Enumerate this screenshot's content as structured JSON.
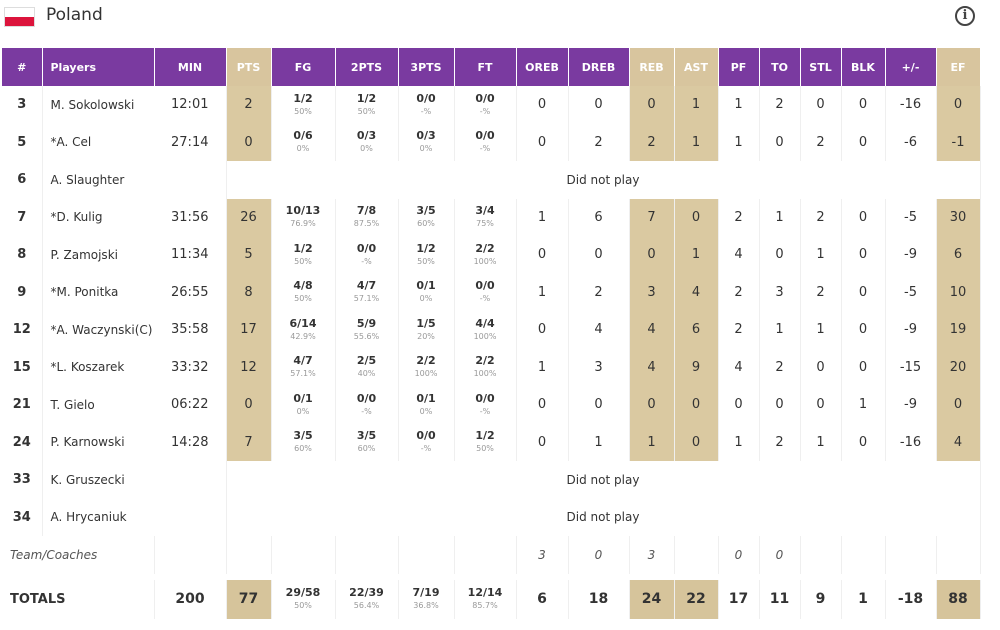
{
  "team": {
    "name": "Poland"
  },
  "columns": [
    "#",
    "Players",
    "MIN",
    "PTS",
    "FG",
    "2PTS",
    "3PTS",
    "FT",
    "OREB",
    "DREB",
    "REB",
    "AST",
    "PF",
    "TO",
    "STL",
    "BLK",
    "+/-",
    "EF"
  ],
  "players": [
    {
      "no": "3",
      "name": "M. Sokolowski",
      "min": "12:01",
      "pts": "2",
      "fg": [
        "1/2",
        "50%"
      ],
      "p2": [
        "1/2",
        "50%"
      ],
      "p3": [
        "0/0",
        "-%"
      ],
      "ft": [
        "0/0",
        "-%"
      ],
      "oreb": "0",
      "dreb": "0",
      "reb": "0",
      "ast": "1",
      "pf": "1",
      "to": "2",
      "stl": "0",
      "blk": "0",
      "pm": "-16",
      "ef": "0"
    },
    {
      "no": "5",
      "name": "*A. Cel",
      "min": "27:14",
      "pts": "0",
      "fg": [
        "0/6",
        "0%"
      ],
      "p2": [
        "0/3",
        "0%"
      ],
      "p3": [
        "0/3",
        "0%"
      ],
      "ft": [
        "0/0",
        "-%"
      ],
      "oreb": "0",
      "dreb": "2",
      "reb": "2",
      "ast": "1",
      "pf": "1",
      "to": "0",
      "stl": "2",
      "blk": "0",
      "pm": "-6",
      "ef": "-1"
    },
    {
      "no": "6",
      "name": "A. Slaughter",
      "dnp": "Did not play"
    },
    {
      "no": "7",
      "name": "*D. Kulig",
      "min": "31:56",
      "pts": "26",
      "fg": [
        "10/13",
        "76.9%"
      ],
      "p2": [
        "7/8",
        "87.5%"
      ],
      "p3": [
        "3/5",
        "60%"
      ],
      "ft": [
        "3/4",
        "75%"
      ],
      "oreb": "1",
      "dreb": "6",
      "reb": "7",
      "ast": "0",
      "pf": "2",
      "to": "1",
      "stl": "2",
      "blk": "0",
      "pm": "-5",
      "ef": "30"
    },
    {
      "no": "8",
      "name": "P. Zamojski",
      "min": "11:34",
      "pts": "5",
      "fg": [
        "1/2",
        "50%"
      ],
      "p2": [
        "0/0",
        "-%"
      ],
      "p3": [
        "1/2",
        "50%"
      ],
      "ft": [
        "2/2",
        "100%"
      ],
      "oreb": "0",
      "dreb": "0",
      "reb": "0",
      "ast": "1",
      "pf": "4",
      "to": "0",
      "stl": "1",
      "blk": "0",
      "pm": "-9",
      "ef": "6"
    },
    {
      "no": "9",
      "name": "*M. Ponitka",
      "min": "26:55",
      "pts": "8",
      "fg": [
        "4/8",
        "50%"
      ],
      "p2": [
        "4/7",
        "57.1%"
      ],
      "p3": [
        "0/1",
        "0%"
      ],
      "ft": [
        "0/0",
        "-%"
      ],
      "oreb": "1",
      "dreb": "2",
      "reb": "3",
      "ast": "4",
      "pf": "2",
      "to": "3",
      "stl": "2",
      "blk": "0",
      "pm": "-5",
      "ef": "10"
    },
    {
      "no": "12",
      "name": "*A. Waczynski(C)",
      "min": "35:58",
      "pts": "17",
      "fg": [
        "6/14",
        "42.9%"
      ],
      "p2": [
        "5/9",
        "55.6%"
      ],
      "p3": [
        "1/5",
        "20%"
      ],
      "ft": [
        "4/4",
        "100%"
      ],
      "oreb": "0",
      "dreb": "4",
      "reb": "4",
      "ast": "6",
      "pf": "2",
      "to": "1",
      "stl": "1",
      "blk": "0",
      "pm": "-9",
      "ef": "19"
    },
    {
      "no": "15",
      "name": "*L. Koszarek",
      "min": "33:32",
      "pts": "12",
      "fg": [
        "4/7",
        "57.1%"
      ],
      "p2": [
        "2/5",
        "40%"
      ],
      "p3": [
        "2/2",
        "100%"
      ],
      "ft": [
        "2/2",
        "100%"
      ],
      "oreb": "1",
      "dreb": "3",
      "reb": "4",
      "ast": "9",
      "pf": "4",
      "to": "2",
      "stl": "0",
      "blk": "0",
      "pm": "-15",
      "ef": "20"
    },
    {
      "no": "21",
      "name": "T. Gielo",
      "min": "06:22",
      "pts": "0",
      "fg": [
        "0/1",
        "0%"
      ],
      "p2": [
        "0/0",
        "-%"
      ],
      "p3": [
        "0/1",
        "0%"
      ],
      "ft": [
        "0/0",
        "-%"
      ],
      "oreb": "0",
      "dreb": "0",
      "reb": "0",
      "ast": "0",
      "pf": "0",
      "to": "0",
      "stl": "0",
      "blk": "1",
      "pm": "-9",
      "ef": "0"
    },
    {
      "no": "24",
      "name": "P. Karnowski",
      "min": "14:28",
      "pts": "7",
      "fg": [
        "3/5",
        "60%"
      ],
      "p2": [
        "3/5",
        "60%"
      ],
      "p3": [
        "0/0",
        "-%"
      ],
      "ft": [
        "1/2",
        "50%"
      ],
      "oreb": "0",
      "dreb": "1",
      "reb": "1",
      "ast": "0",
      "pf": "1",
      "to": "2",
      "stl": "1",
      "blk": "0",
      "pm": "-16",
      "ef": "4"
    },
    {
      "no": "33",
      "name": "K. Gruszecki",
      "dnp": "Did not play"
    },
    {
      "no": "34",
      "name": "A. Hrycaniuk",
      "dnp": "Did not play"
    }
  ],
  "team_coaches": {
    "label": "Team/Coaches",
    "oreb": "3",
    "dreb": "0",
    "reb": "3",
    "pf": "0",
    "to": "0"
  },
  "totals": {
    "label": "TOTALS",
    "min": "200",
    "pts": "77",
    "fg": [
      "29/58",
      "50%"
    ],
    "p2": [
      "22/39",
      "56.4%"
    ],
    "p3": [
      "7/19",
      "36.8%"
    ],
    "ft": [
      "12/14",
      "85.7%"
    ],
    "oreb": "6",
    "dreb": "18",
    "reb": "24",
    "ast": "22",
    "pf": "17",
    "to": "11",
    "stl": "9",
    "blk": "1",
    "pm": "-18",
    "ef": "88"
  },
  "colors": {
    "header_purple": "#7a3aa0",
    "highlight_tan": "#d8c59e"
  }
}
